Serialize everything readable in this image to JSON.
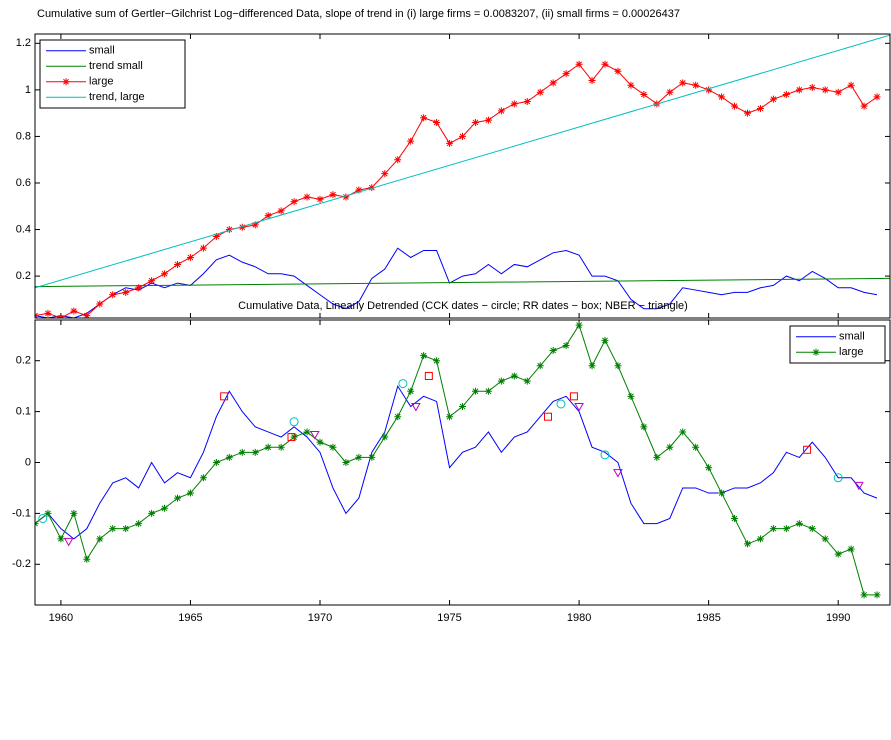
{
  "chart_data": [
    {
      "type": "line",
      "title": "Cumulative sum of Gertler−Gilchrist Log−differenced Data, slope of trend in (i) large firms = 0.0083207,  (ii) small firms = 0.00026437",
      "x": [
        1959,
        1959.5,
        1960,
        1960.5,
        1961,
        1961.5,
        1962,
        1962.5,
        1963,
        1963.5,
        1964,
        1964.5,
        1965,
        1965.5,
        1966,
        1966.5,
        1967,
        1967.5,
        1968,
        1968.5,
        1969,
        1969.5,
        1970,
        1970.5,
        1971,
        1971.5,
        1972,
        1972.5,
        1973,
        1973.5,
        1974,
        1974.5,
        1975,
        1975.5,
        1976,
        1976.5,
        1977,
        1977.5,
        1978,
        1978.5,
        1979,
        1979.5,
        1980,
        1980.5,
        1981,
        1981.5,
        1982,
        1982.5,
        1983,
        1983.5,
        1984,
        1984.5,
        1985,
        1985.5,
        1986,
        1986.5,
        1987,
        1987.5,
        1988,
        1988.5,
        1989,
        1989.5,
        1990,
        1990.5,
        1991,
        1991.5
      ],
      "series": [
        {
          "name": "small",
          "color": "#0000ff",
          "marker": null,
          "values": [
            0.03,
            0.02,
            0.03,
            0.02,
            0.04,
            0.08,
            0.12,
            0.15,
            0.14,
            0.17,
            0.15,
            0.17,
            0.16,
            0.21,
            0.27,
            0.29,
            0.26,
            0.24,
            0.21,
            0.21,
            0.2,
            0.16,
            0.12,
            0.08,
            0.06,
            0.09,
            0.19,
            0.23,
            0.32,
            0.28,
            0.31,
            0.31,
            0.17,
            0.2,
            0.21,
            0.25,
            0.21,
            0.25,
            0.24,
            0.27,
            0.3,
            0.31,
            0.29,
            0.2,
            0.2,
            0.18,
            0.1,
            0.06,
            0.06,
            0.08,
            0.15,
            0.14,
            0.13,
            0.12,
            0.13,
            0.13,
            0.15,
            0.16,
            0.2,
            0.18,
            0.22,
            0.19,
            0.15,
            0.15,
            0.13,
            0.12
          ]
        },
        {
          "name": "trend small",
          "color": "#008000",
          "marker": null,
          "x": [
            1959,
            1992
          ],
          "values": [
            0.155,
            0.19
          ]
        },
        {
          "name": "large",
          "color": "#ff0000",
          "marker": "star",
          "values": [
            0.03,
            0.04,
            0.02,
            0.05,
            0.03,
            0.08,
            0.12,
            0.13,
            0.15,
            0.18,
            0.21,
            0.25,
            0.28,
            0.32,
            0.37,
            0.4,
            0.41,
            0.42,
            0.46,
            0.48,
            0.52,
            0.54,
            0.53,
            0.55,
            0.54,
            0.57,
            0.58,
            0.64,
            0.7,
            0.78,
            0.88,
            0.86,
            0.77,
            0.8,
            0.86,
            0.87,
            0.91,
            0.94,
            0.95,
            0.99,
            1.03,
            1.07,
            1.11,
            1.04,
            1.11,
            1.08,
            1.02,
            0.98,
            0.94,
            0.99,
            1.03,
            1.02,
            1.0,
            0.97,
            0.93,
            0.9,
            0.92,
            0.96,
            0.98,
            1.0,
            1.01,
            1.0,
            0.99,
            1.02,
            0.93,
            0.97
          ]
        },
        {
          "name": "trend, large",
          "color": "#00bfbf",
          "marker": null,
          "x": [
            1959,
            1992
          ],
          "values": [
            0.15,
            1.235
          ]
        }
      ],
      "xlim": [
        1959,
        1992
      ],
      "xticks": [
        1960,
        1965,
        1970,
        1975,
        1980,
        1985,
        1990
      ],
      "ylim": [
        0.02,
        1.24
      ],
      "yticks": [
        0.2,
        0.4,
        0.6,
        0.8,
        1,
        1.2
      ],
      "legend": "upper left"
    },
    {
      "type": "line",
      "title": "Cumulative Data, Linearly Detrended (CCK dates − circle; RR dates − box; NBER − triangle)",
      "x": [
        1959,
        1959.5,
        1960,
        1960.5,
        1961,
        1961.5,
        1962,
        1962.5,
        1963,
        1963.5,
        1964,
        1964.5,
        1965,
        1965.5,
        1966,
        1966.5,
        1967,
        1967.5,
        1968,
        1968.5,
        1969,
        1969.5,
        1970,
        1970.5,
        1971,
        1971.5,
        1972,
        1972.5,
        1973,
        1973.5,
        1974,
        1974.5,
        1975,
        1975.5,
        1976,
        1976.5,
        1977,
        1977.5,
        1978,
        1978.5,
        1979,
        1979.5,
        1980,
        1980.5,
        1981,
        1981.5,
        1982,
        1982.5,
        1983,
        1983.5,
        1984,
        1984.5,
        1985,
        1985.5,
        1986,
        1986.5,
        1987,
        1987.5,
        1988,
        1988.5,
        1989,
        1989.5,
        1990,
        1990.5,
        1991,
        1991.5
      ],
      "series": [
        {
          "name": "small",
          "color": "#0000ff",
          "marker": null,
          "values": [
            -0.12,
            -0.1,
            -0.13,
            -0.15,
            -0.13,
            -0.08,
            -0.04,
            -0.03,
            -0.05,
            0.0,
            -0.04,
            -0.02,
            -0.03,
            0.02,
            0.09,
            0.14,
            0.1,
            0.07,
            0.06,
            0.05,
            0.07,
            0.05,
            0.02,
            -0.05,
            -0.1,
            -0.07,
            0.02,
            0.06,
            0.15,
            0.11,
            0.13,
            0.12,
            -0.01,
            0.02,
            0.03,
            0.06,
            0.02,
            0.05,
            0.06,
            0.09,
            0.12,
            0.13,
            0.1,
            0.03,
            0.02,
            0.0,
            -0.08,
            -0.12,
            -0.12,
            -0.11,
            -0.05,
            -0.05,
            -0.06,
            -0.06,
            -0.05,
            -0.05,
            -0.04,
            -0.02,
            0.02,
            0.01,
            0.04,
            0.01,
            -0.03,
            -0.03,
            -0.06,
            -0.07
          ]
        },
        {
          "name": "large",
          "color": "#008000",
          "marker": "star",
          "values": [
            -0.12,
            -0.1,
            -0.15,
            -0.1,
            -0.19,
            -0.15,
            -0.13,
            -0.13,
            -0.12,
            -0.1,
            -0.09,
            -0.07,
            -0.06,
            -0.03,
            0.0,
            0.01,
            0.02,
            0.02,
            0.03,
            0.03,
            0.05,
            0.06,
            0.04,
            0.03,
            0.0,
            0.01,
            0.01,
            0.05,
            0.09,
            0.14,
            0.21,
            0.2,
            0.09,
            0.11,
            0.14,
            0.14,
            0.16,
            0.17,
            0.16,
            0.19,
            0.22,
            0.23,
            0.27,
            0.19,
            0.24,
            0.19,
            0.13,
            0.07,
            0.01,
            0.03,
            0.06,
            0.03,
            -0.01,
            -0.06,
            -0.11,
            -0.16,
            -0.15,
            -0.13,
            -0.13,
            -0.12,
            -0.13,
            -0.15,
            -0.18,
            -0.17,
            -0.26,
            -0.26
          ]
        }
      ],
      "markers": [
        {
          "shape": "circle",
          "color": "#00bfbf",
          "x": [
            1959.3,
            1969,
            1973.2,
            1979.3,
            1981,
            1990
          ],
          "values": [
            -0.11,
            0.08,
            0.155,
            0.115,
            0.015,
            -0.03
          ]
        },
        {
          "shape": "box",
          "color": "#ff0000",
          "x": [
            1966.3,
            1968.9,
            1974.2,
            1978.8,
            1979.8,
            1988.8
          ],
          "values": [
            0.13,
            0.05,
            0.17,
            0.09,
            0.13,
            0.025
          ]
        },
        {
          "shape": "triangle",
          "color": "#bf00bf",
          "x": [
            1960.3,
            1969.8,
            1973.7,
            1980,
            1981.5,
            1990.8
          ],
          "values": [
            -0.155,
            0.055,
            0.11,
            0.11,
            -0.02,
            -0.045
          ]
        }
      ],
      "xlim": [
        1959,
        1992
      ],
      "xticks": [
        1960,
        1965,
        1970,
        1975,
        1980,
        1985,
        1990
      ],
      "ylim": [
        -0.28,
        0.28
      ],
      "yticks": [
        -0.2,
        -0.1,
        0,
        0.1,
        0.2
      ],
      "legend": "upper right"
    }
  ]
}
